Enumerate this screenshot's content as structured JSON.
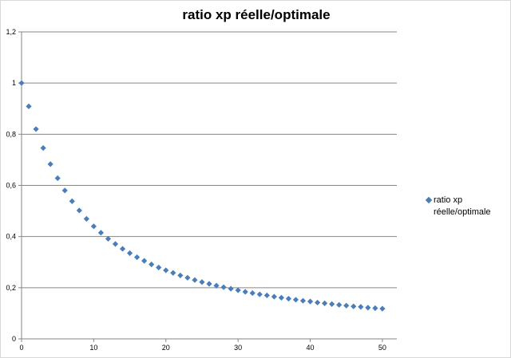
{
  "chart_data": {
    "type": "scatter",
    "title": "ratio xp réelle/optimale",
    "xlabel": "",
    "ylabel": "",
    "xlim": [
      0,
      52
    ],
    "ylim": [
      0,
      1.2
    ],
    "x_ticks": [
      "0",
      "10",
      "20",
      "30",
      "40",
      "50"
    ],
    "y_ticks": [
      "0",
      "0,2",
      "0,4",
      "0,6",
      "0,8",
      "1",
      "1,2"
    ],
    "grid": "horizontal",
    "legend_position": "right",
    "color": "#4a7ebb",
    "series": [
      {
        "name": "ratio xp réelle/optimale",
        "x": [
          0,
          1,
          2,
          3,
          4,
          5,
          6,
          7,
          8,
          9,
          10,
          11,
          12,
          13,
          14,
          15,
          16,
          17,
          18,
          19,
          20,
          21,
          22,
          23,
          24,
          25,
          26,
          27,
          28,
          29,
          30,
          31,
          32,
          33,
          34,
          35,
          36,
          37,
          38,
          39,
          40,
          41,
          42,
          43,
          44,
          45,
          46,
          47,
          48,
          49,
          50
        ],
        "y": [
          1,
          0.909,
          0.82,
          0.746,
          0.683,
          0.628,
          0.58,
          0.538,
          0.502,
          0.469,
          0.44,
          0.415,
          0.391,
          0.371,
          0.352,
          0.335,
          0.319,
          0.305,
          0.291,
          0.279,
          0.268,
          0.258,
          0.248,
          0.239,
          0.23,
          0.222,
          0.215,
          0.208,
          0.202,
          0.196,
          0.19,
          0.184,
          0.179,
          0.174,
          0.17,
          0.165,
          0.161,
          0.157,
          0.153,
          0.149,
          0.146,
          0.142,
          0.139,
          0.136,
          0.133,
          0.13,
          0.127,
          0.125,
          0.122,
          0.12,
          0.118
        ]
      }
    ]
  }
}
